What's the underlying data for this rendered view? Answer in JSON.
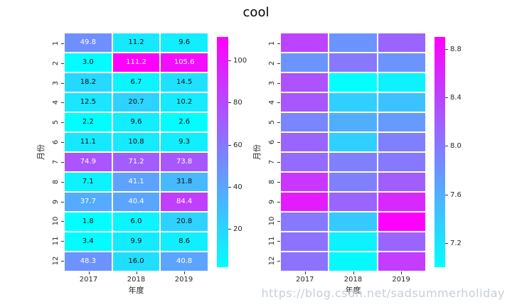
{
  "title": "cool",
  "watermark": "https://blog.csdn.net/sadsummerholiday",
  "chart_data": [
    {
      "type": "heatmap",
      "xlabel": "年度",
      "ylabel": "月份",
      "x_categories": [
        "2017",
        "2018",
        "2019"
      ],
      "y_categories": [
        "1",
        "2",
        "3",
        "4",
        "5",
        "6",
        "7",
        "8",
        "9",
        "10",
        "11",
        "12"
      ],
      "colormap": "cool",
      "colormap_low": "#00FFFF",
      "colormap_high": "#FF00FF",
      "vmin": 1.8,
      "vmax": 111.2,
      "annotated": true,
      "colorbar_tick_labels": [
        "20",
        "40",
        "60",
        "80",
        "100"
      ],
      "values": [
        [
          49.8,
          11.2,
          9.6
        ],
        [
          3.0,
          111.2,
          105.6
        ],
        [
          18.2,
          6.7,
          14.5
        ],
        [
          12.5,
          20.7,
          10.2
        ],
        [
          2.2,
          9.6,
          2.6
        ],
        [
          11.1,
          10.8,
          9.3
        ],
        [
          74.9,
          71.2,
          73.8
        ],
        [
          7.1,
          41.1,
          31.8
        ],
        [
          37.7,
          40.4,
          84.4
        ],
        [
          1.8,
          6.0,
          20.8
        ],
        [
          3.4,
          9.9,
          8.6
        ],
        [
          48.3,
          16.0,
          40.8
        ]
      ]
    },
    {
      "type": "heatmap",
      "xlabel": "年度",
      "ylabel": "月份",
      "x_categories": [
        "2017",
        "2018",
        "2019"
      ],
      "y_categories": [
        "1",
        "2",
        "3",
        "4",
        "5",
        "6",
        "7",
        "8",
        "9",
        "10",
        "11",
        "12"
      ],
      "colormap": "cool",
      "colormap_low": "#00FFFF",
      "colormap_high": "#FF00FF",
      "vmin": 7.0,
      "vmax": 8.9,
      "annotated": false,
      "colorbar_tick_labels": [
        "7.2",
        "7.6",
        "8.0",
        "8.4",
        "8.8"
      ],
      "values": [
        [
          8.4,
          7.8,
          8.15
        ],
        [
          7.8,
          8.0,
          7.8
        ],
        [
          8.3,
          7.0,
          7.1
        ],
        [
          8.25,
          7.35,
          7.45
        ],
        [
          7.9,
          7.6,
          7.75
        ],
        [
          8.15,
          7.35,
          7.95
        ],
        [
          8.1,
          7.95,
          8.0
        ],
        [
          8.5,
          7.95,
          8.2
        ],
        [
          8.7,
          8.15,
          8.6
        ],
        [
          8.0,
          7.4,
          8.9
        ],
        [
          8.05,
          7.1,
          8.15
        ],
        [
          8.05,
          7.05,
          8.45
        ]
      ]
    }
  ]
}
